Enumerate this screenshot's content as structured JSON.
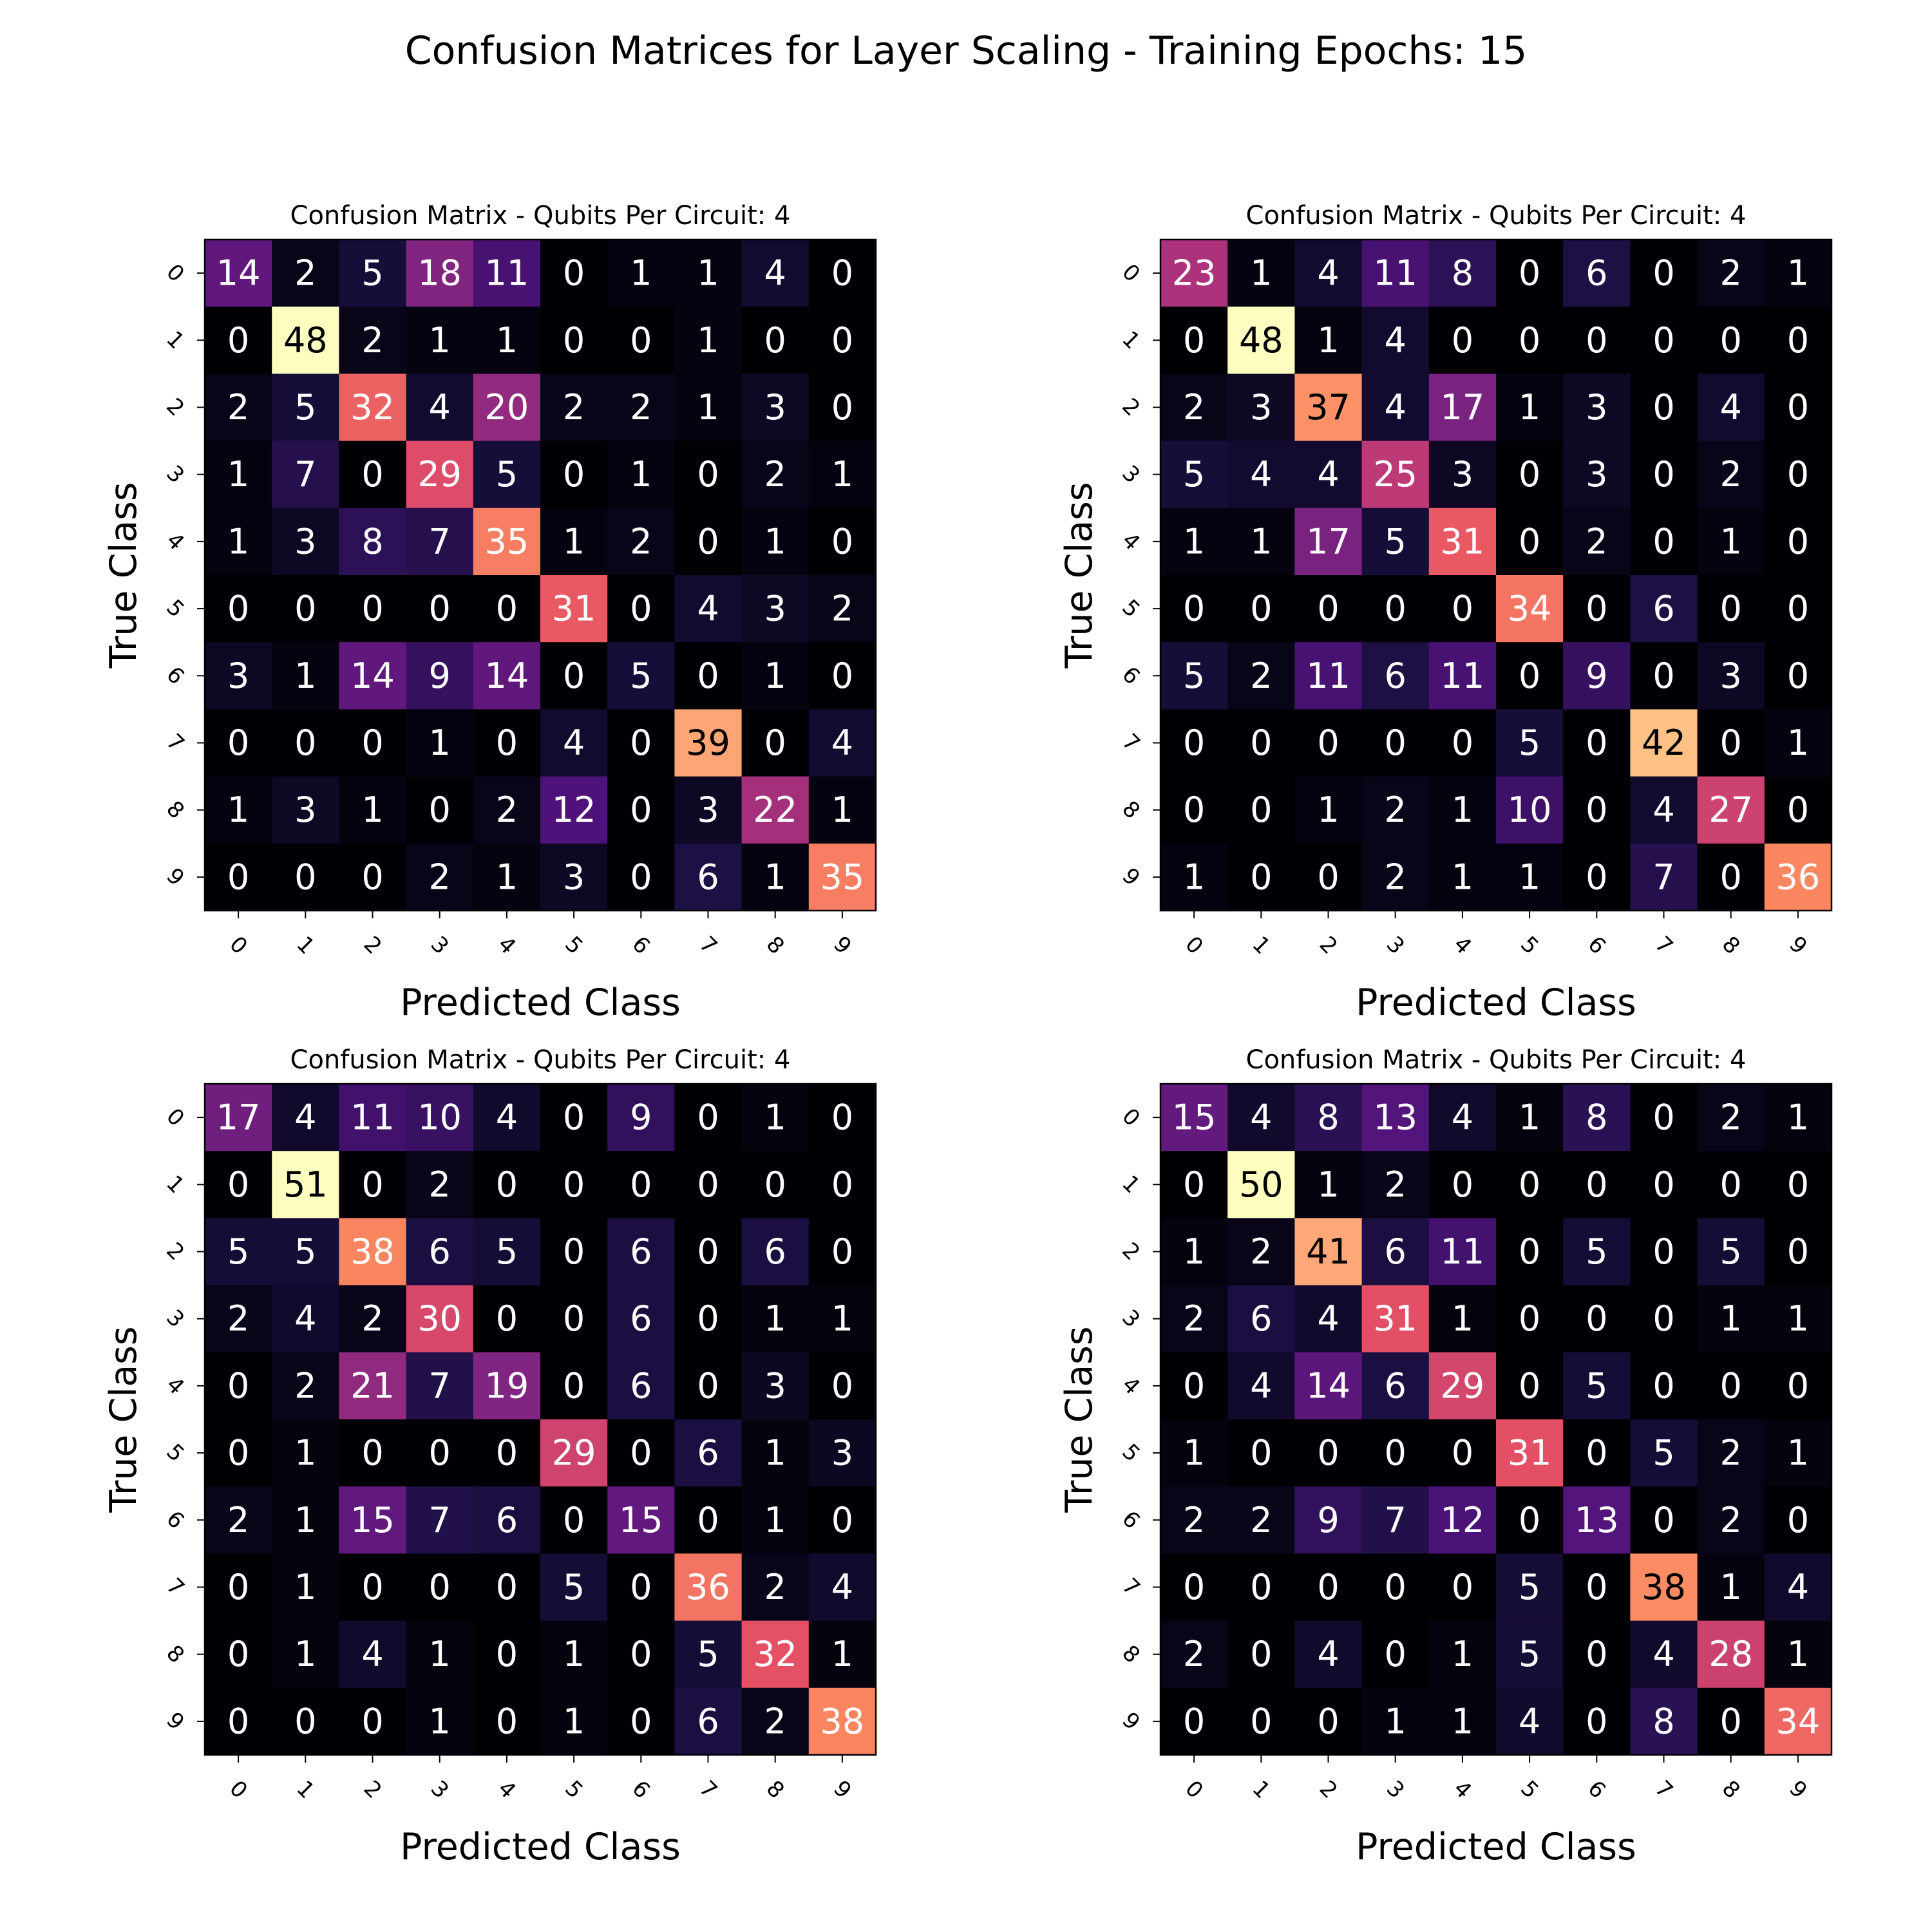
{
  "suptitle": "Confusion Matrices for Layer Scaling - Training Epochs: 15",
  "chart_data": [
    {
      "type": "heatmap",
      "title": "Confusion Matrix - Qubits Per Circuit: 4",
      "xlabel": "Predicted Class",
      "ylabel": "True Class",
      "x_categories": [
        "0",
        "1",
        "2",
        "3",
        "4",
        "5",
        "6",
        "7",
        "8",
        "9"
      ],
      "y_categories": [
        "0",
        "1",
        "2",
        "3",
        "4",
        "5",
        "6",
        "7",
        "8",
        "9"
      ],
      "colormap": "magma",
      "values": [
        [
          14,
          2,
          5,
          18,
          11,
          0,
          1,
          1,
          4,
          0
        ],
        [
          0,
          48,
          2,
          1,
          1,
          0,
          0,
          1,
          0,
          0
        ],
        [
          2,
          5,
          32,
          4,
          20,
          2,
          2,
          1,
          3,
          0
        ],
        [
          1,
          7,
          0,
          29,
          5,
          0,
          1,
          0,
          2,
          1
        ],
        [
          1,
          3,
          8,
          7,
          35,
          1,
          2,
          0,
          1,
          0
        ],
        [
          0,
          0,
          0,
          0,
          0,
          31,
          0,
          4,
          3,
          2
        ],
        [
          3,
          1,
          14,
          9,
          14,
          0,
          5,
          0,
          1,
          0
        ],
        [
          0,
          0,
          0,
          1,
          0,
          4,
          0,
          39,
          0,
          4
        ],
        [
          1,
          3,
          1,
          0,
          2,
          12,
          0,
          3,
          22,
          1
        ],
        [
          0,
          0,
          0,
          2,
          1,
          3,
          0,
          6,
          1,
          35
        ]
      ]
    },
    {
      "type": "heatmap",
      "title": "Confusion Matrix - Qubits Per Circuit: 4",
      "xlabel": "Predicted Class",
      "ylabel": "True Class",
      "x_categories": [
        "0",
        "1",
        "2",
        "3",
        "4",
        "5",
        "6",
        "7",
        "8",
        "9"
      ],
      "y_categories": [
        "0",
        "1",
        "2",
        "3",
        "4",
        "5",
        "6",
        "7",
        "8",
        "9"
      ],
      "colormap": "magma",
      "values": [
        [
          23,
          1,
          4,
          11,
          8,
          0,
          6,
          0,
          2,
          1
        ],
        [
          0,
          48,
          1,
          4,
          0,
          0,
          0,
          0,
          0,
          0
        ],
        [
          2,
          3,
          37,
          4,
          17,
          1,
          3,
          0,
          4,
          0
        ],
        [
          5,
          4,
          4,
          25,
          3,
          0,
          3,
          0,
          2,
          0
        ],
        [
          1,
          1,
          17,
          5,
          31,
          0,
          2,
          0,
          1,
          0
        ],
        [
          0,
          0,
          0,
          0,
          0,
          34,
          0,
          6,
          0,
          0
        ],
        [
          5,
          2,
          11,
          6,
          11,
          0,
          9,
          0,
          3,
          0
        ],
        [
          0,
          0,
          0,
          0,
          0,
          5,
          0,
          42,
          0,
          1
        ],
        [
          0,
          0,
          1,
          2,
          1,
          10,
          0,
          4,
          27,
          0
        ],
        [
          1,
          0,
          0,
          2,
          1,
          1,
          0,
          7,
          0,
          36
        ]
      ]
    },
    {
      "type": "heatmap",
      "title": "Confusion Matrix - Qubits Per Circuit: 4",
      "xlabel": "Predicted Class",
      "ylabel": "True Class",
      "x_categories": [
        "0",
        "1",
        "2",
        "3",
        "4",
        "5",
        "6",
        "7",
        "8",
        "9"
      ],
      "y_categories": [
        "0",
        "1",
        "2",
        "3",
        "4",
        "5",
        "6",
        "7",
        "8",
        "9"
      ],
      "colormap": "magma",
      "values": [
        [
          17,
          4,
          11,
          10,
          4,
          0,
          9,
          0,
          1,
          0
        ],
        [
          0,
          51,
          0,
          2,
          0,
          0,
          0,
          0,
          0,
          0
        ],
        [
          5,
          5,
          38,
          6,
          5,
          0,
          6,
          0,
          6,
          0
        ],
        [
          2,
          4,
          2,
          30,
          0,
          0,
          6,
          0,
          1,
          1
        ],
        [
          0,
          2,
          21,
          7,
          19,
          0,
          6,
          0,
          3,
          0
        ],
        [
          0,
          1,
          0,
          0,
          0,
          29,
          0,
          6,
          1,
          3
        ],
        [
          2,
          1,
          15,
          7,
          6,
          0,
          15,
          0,
          1,
          0
        ],
        [
          0,
          1,
          0,
          0,
          0,
          5,
          0,
          36,
          2,
          4
        ],
        [
          0,
          1,
          4,
          1,
          0,
          1,
          0,
          5,
          32,
          1
        ],
        [
          0,
          0,
          0,
          1,
          0,
          1,
          0,
          6,
          2,
          38
        ]
      ]
    },
    {
      "type": "heatmap",
      "title": "Confusion Matrix - Qubits Per Circuit: 4",
      "xlabel": "Predicted Class",
      "ylabel": "True Class",
      "x_categories": [
        "0",
        "1",
        "2",
        "3",
        "4",
        "5",
        "6",
        "7",
        "8",
        "9"
      ],
      "y_categories": [
        "0",
        "1",
        "2",
        "3",
        "4",
        "5",
        "6",
        "7",
        "8",
        "9"
      ],
      "colormap": "magma",
      "values": [
        [
          15,
          4,
          8,
          13,
          4,
          1,
          8,
          0,
          2,
          1
        ],
        [
          0,
          50,
          1,
          2,
          0,
          0,
          0,
          0,
          0,
          0
        ],
        [
          1,
          2,
          41,
          6,
          11,
          0,
          5,
          0,
          5,
          0
        ],
        [
          2,
          6,
          4,
          31,
          1,
          0,
          0,
          0,
          1,
          1
        ],
        [
          0,
          4,
          14,
          6,
          29,
          0,
          5,
          0,
          0,
          0
        ],
        [
          1,
          0,
          0,
          0,
          0,
          31,
          0,
          5,
          2,
          1
        ],
        [
          2,
          2,
          9,
          7,
          12,
          0,
          13,
          0,
          2,
          0
        ],
        [
          0,
          0,
          0,
          0,
          0,
          5,
          0,
          38,
          1,
          4
        ],
        [
          2,
          0,
          4,
          0,
          1,
          5,
          0,
          4,
          28,
          1
        ],
        [
          0,
          0,
          0,
          1,
          1,
          4,
          0,
          8,
          0,
          34
        ]
      ]
    }
  ]
}
